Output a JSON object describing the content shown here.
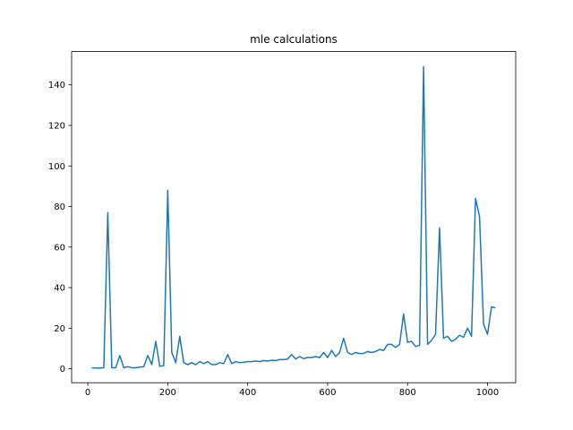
{
  "chart_data": {
    "type": "line",
    "title": "mle calculations",
    "x": [
      10,
      20,
      30,
      40,
      50,
      60,
      70,
      80,
      90,
      100,
      110,
      120,
      130,
      140,
      150,
      160,
      170,
      180,
      190,
      200,
      210,
      220,
      230,
      240,
      250,
      260,
      270,
      280,
      290,
      300,
      310,
      320,
      330,
      340,
      350,
      360,
      370,
      380,
      390,
      400,
      410,
      420,
      430,
      440,
      450,
      460,
      470,
      480,
      490,
      500,
      510,
      520,
      530,
      540,
      550,
      560,
      570,
      580,
      590,
      600,
      610,
      620,
      630,
      640,
      650,
      660,
      670,
      680,
      690,
      700,
      710,
      720,
      730,
      740,
      750,
      760,
      770,
      780,
      790,
      800,
      810,
      820,
      830,
      840,
      850,
      860,
      870,
      880,
      890,
      900,
      910,
      920,
      930,
      940,
      950,
      960,
      970,
      980,
      990,
      1000,
      1010,
      1020
    ],
    "series": [
      {
        "color": "#1f77b4",
        "values": [
          0.5,
          0.3,
          0.3,
          0.5,
          77,
          0.5,
          0.5,
          6.5,
          0.5,
          1,
          0.5,
          0.5,
          0.8,
          1,
          6.5,
          2,
          13.5,
          1.2,
          1.5,
          88,
          8,
          3,
          16,
          3,
          2,
          3,
          2,
          3.5,
          2.5,
          3.5,
          2,
          2,
          3,
          2.5,
          7,
          2.5,
          3.5,
          3,
          3.2,
          3.5,
          3.5,
          3.8,
          3.5,
          4,
          3.8,
          4.2,
          4,
          4.5,
          4.5,
          4.8,
          7,
          4.8,
          6,
          5,
          5.5,
          5.5,
          6,
          5.5,
          8,
          5.5,
          9,
          6,
          8,
          15,
          8,
          7,
          8,
          7.5,
          7.5,
          8.5,
          8,
          8.5,
          9.5,
          9,
          12,
          12,
          10.5,
          12,
          27,
          13,
          13.5,
          11,
          11.5,
          149,
          12,
          14,
          17,
          69.5,
          15,
          16,
          13.5,
          14.5,
          16.5,
          15.5,
          20,
          16,
          84,
          75,
          22,
          17,
          30.5,
          30
        ]
      }
    ],
    "xlim": [
      -40.5,
      1070.5
    ],
    "ylim": [
      -6.9,
      156.4
    ],
    "xticks": [
      0,
      200,
      400,
      600,
      800,
      1000
    ],
    "yticks": [
      0,
      20,
      40,
      60,
      80,
      100,
      120,
      140
    ],
    "grid": false
  }
}
